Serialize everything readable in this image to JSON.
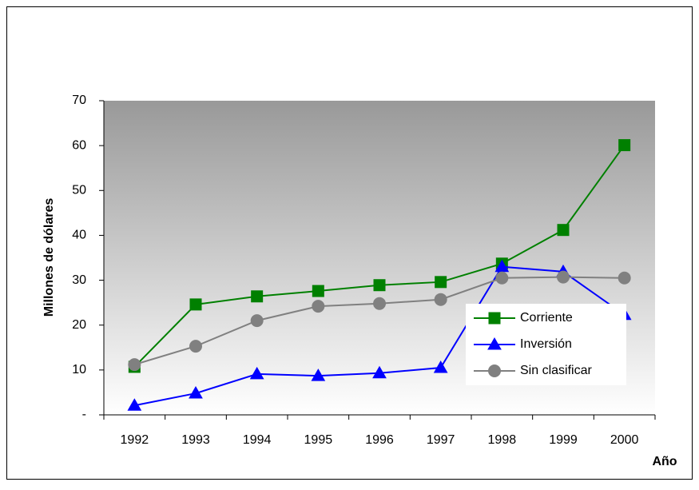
{
  "chart_data": {
    "type": "line",
    "ylabel": "Millones de dólares",
    "xlabel": "Año",
    "categories": [
      "1992",
      "1993",
      "1994",
      "1995",
      "1996",
      "1997",
      "1998",
      "1999",
      "2000"
    ],
    "series": [
      {
        "name": "Corriente",
        "color": "#008000",
        "marker": "square",
        "values": [
          10.7,
          24.6,
          26.4,
          27.6,
          28.9,
          29.6,
          33.7,
          41.2,
          60.1
        ]
      },
      {
        "name": "Inversión",
        "color": "#0000ff",
        "marker": "triangle",
        "values": [
          2.1,
          4.8,
          9.1,
          8.7,
          9.3,
          10.5,
          33.0,
          31.9,
          22.3
        ]
      },
      {
        "name": "Sin clasificar",
        "color": "#808080",
        "marker": "circle",
        "values": [
          11.2,
          15.3,
          21.0,
          24.2,
          24.8,
          25.7,
          30.5,
          30.7,
          30.5
        ]
      }
    ],
    "ylim": [
      0,
      70
    ],
    "yticks": [
      {
        "value": 0,
        "label": "-"
      },
      10,
      20,
      30,
      40,
      50,
      60,
      70
    ],
    "legend": "lower right"
  }
}
